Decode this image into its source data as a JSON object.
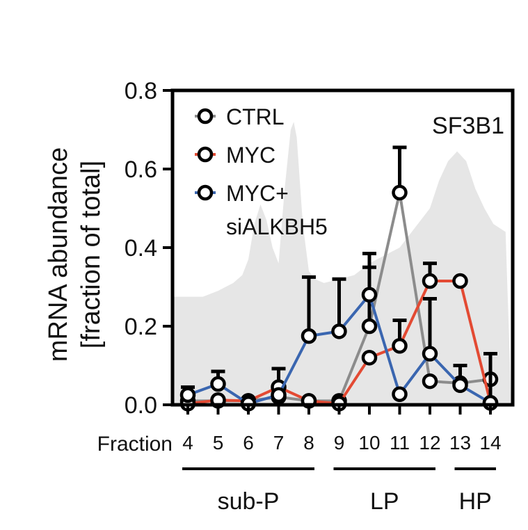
{
  "chart_data": {
    "type": "line",
    "gene": "SF3B1",
    "ylabel_line1": "mRNA abundance",
    "ylabel_line2": "[fraction of total]",
    "x_word": "Fraction",
    "x": [
      4,
      5,
      6,
      7,
      8,
      9,
      10,
      11,
      12,
      13,
      14
    ],
    "ylim": [
      0,
      0.8
    ],
    "yticks": [
      "0.0",
      "0.2",
      "0.4",
      "0.6",
      "0.8"
    ],
    "series": [
      {
        "name": "CTRL",
        "color": "#8c8c8c",
        "values": [
          0.01,
          0.01,
          0.01,
          0.02,
          0.01,
          0.01,
          0.2,
          0.54,
          0.06,
          0.055,
          0.065
        ],
        "err_upper": [
          null,
          null,
          null,
          null,
          null,
          null,
          0.35,
          0.655,
          null,
          null,
          null
        ]
      },
      {
        "name": "MYC",
        "color": "#e34a33",
        "values": [
          0.003,
          0.012,
          0.01,
          0.045,
          0.01,
          0.003,
          0.12,
          0.15,
          0.315,
          0.315,
          0.005
        ],
        "err_upper": [
          null,
          null,
          null,
          0.092,
          null,
          null,
          null,
          0.215,
          0.36,
          null,
          null
        ]
      },
      {
        "name": "MYC+\nsiALKBH5",
        "label_line1": "MYC+",
        "label_line2": "siALKBH5",
        "color": "#3a66b0",
        "values": [
          0.025,
          0.053,
          0.003,
          0.025,
          0.175,
          0.187,
          0.28,
          0.027,
          0.13,
          0.05,
          0.005
        ],
        "err_upper": [
          0.045,
          0.085,
          null,
          null,
          0.325,
          0.32,
          0.385,
          null,
          0.27,
          0.1,
          0.13
        ]
      }
    ],
    "background_profile": {
      "color": "#e6e6e6",
      "x": [
        3.5,
        4.0,
        4.5,
        5.0,
        5.5,
        5.8,
        6.0,
        6.2,
        6.4,
        6.6,
        6.8,
        7.0,
        7.2,
        7.4,
        7.5,
        7.6,
        7.8,
        8.0,
        8.2,
        8.5,
        9.0,
        9.5,
        10.0,
        10.5,
        11.0,
        11.5,
        12.0,
        12.3,
        12.6,
        12.9,
        13.2,
        13.5,
        13.8,
        14.1,
        14.5
      ],
      "y": [
        0.275,
        0.275,
        0.275,
        0.29,
        0.31,
        0.33,
        0.37,
        0.46,
        0.51,
        0.47,
        0.4,
        0.36,
        0.55,
        0.7,
        0.72,
        0.68,
        0.46,
        0.34,
        0.32,
        0.31,
        0.32,
        0.33,
        0.36,
        0.38,
        0.4,
        0.45,
        0.5,
        0.57,
        0.62,
        0.645,
        0.62,
        0.55,
        0.5,
        0.46,
        0.44
      ]
    },
    "groups": [
      {
        "label": "sub-P",
        "from": 4,
        "to": 8
      },
      {
        "label": "LP",
        "from": 9,
        "to": 12
      },
      {
        "label": "HP",
        "from": 13,
        "to": 14
      }
    ],
    "legend_position": "top-left",
    "grid": false
  }
}
